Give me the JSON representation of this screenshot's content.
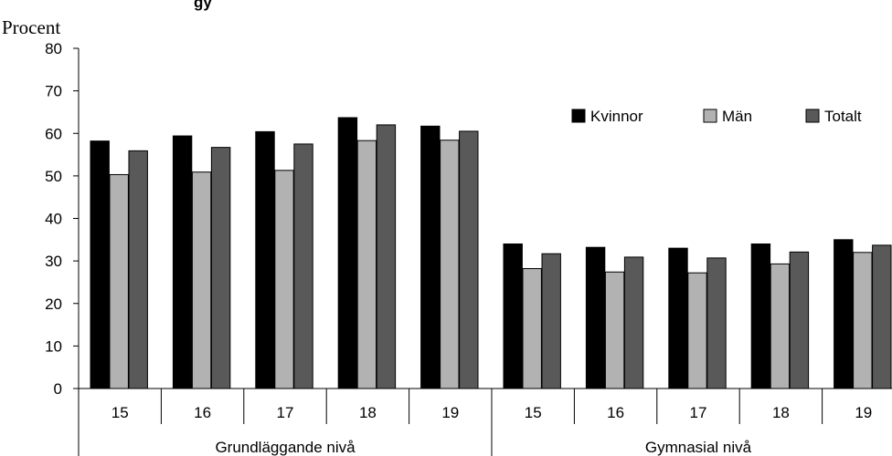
{
  "chart_data": {
    "type": "bar",
    "title_fragment": "gy",
    "ylabel": "Procent",
    "ylim": [
      0,
      80
    ],
    "yticks": [
      0,
      10,
      20,
      30,
      40,
      50,
      60,
      70,
      80
    ],
    "groups": [
      {
        "label": "Grundläggande nivå",
        "categories": [
          "15",
          "16",
          "17",
          "18",
          "19"
        ]
      },
      {
        "label": "Gymnasial nivå",
        "categories": [
          "15",
          "16",
          "17",
          "18",
          "19"
        ]
      }
    ],
    "series": [
      {
        "name": "Kvinnor",
        "color": "#000000",
        "values": [
          58.2,
          59.4,
          60.4,
          63.7,
          61.7,
          34.0,
          33.2,
          33.0,
          34.0,
          35.0
        ]
      },
      {
        "name": "Män",
        "color": "#b2b2b2",
        "values": [
          50.3,
          50.9,
          51.3,
          58.3,
          58.4,
          28.2,
          27.4,
          27.2,
          29.3,
          32.0
        ]
      },
      {
        "name": "Totalt",
        "color": "#595959",
        "values": [
          55.9,
          56.7,
          57.5,
          62.0,
          60.5,
          31.7,
          30.9,
          30.7,
          32.1,
          33.7
        ]
      }
    ],
    "legend_position": "top-right",
    "grid": false
  }
}
